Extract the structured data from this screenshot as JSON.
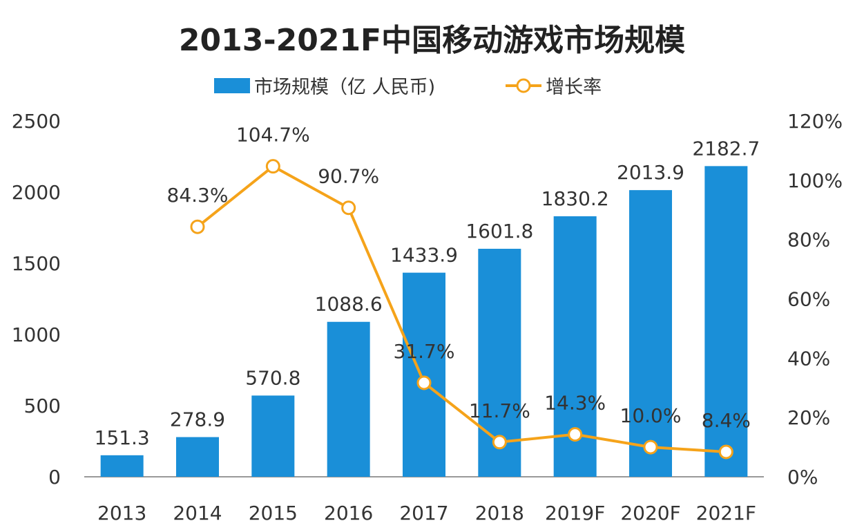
{
  "chart_data": {
    "type": "bar+line",
    "title": "2013-2021F中国移动游戏市场规模",
    "categories": [
      "2013",
      "2014",
      "2015",
      "2016",
      "2017",
      "2018",
      "2019F",
      "2020F",
      "2021F"
    ],
    "series": [
      {
        "name": "市场规模（亿 人民币)",
        "type": "bar",
        "axis": "left",
        "color": "#1a8fd8",
        "values": [
          151.3,
          278.9,
          570.8,
          1088.6,
          1433.9,
          1601.8,
          1830.2,
          2013.9,
          2182.7
        ],
        "labels": [
          "151.3",
          "278.9",
          "570.8",
          "1088.6",
          "1433.9",
          "1601.8",
          "1830.2",
          "2013.9",
          "2182.7"
        ]
      },
      {
        "name": "增长率",
        "type": "line",
        "axis": "right",
        "color": "#f5a31a",
        "values": [
          null,
          84.3,
          104.7,
          90.7,
          31.7,
          11.7,
          14.3,
          10.0,
          8.4
        ],
        "labels": [
          null,
          "84.3%",
          "104.7%",
          "90.7%",
          "31.7%",
          "11.7%",
          "14.3%",
          "10.0%",
          "8.4%"
        ]
      }
    ],
    "y_left": {
      "range": [
        0,
        2500
      ],
      "ticks": [
        "0",
        "500",
        "1000",
        "1500",
        "2000",
        "2500"
      ]
    },
    "y_right": {
      "range": [
        0,
        120
      ],
      "ticks": [
        "0%",
        "20%",
        "40%",
        "60%",
        "80%",
        "100%",
        "120%"
      ]
    },
    "grid": false,
    "legend_placement": "top"
  }
}
